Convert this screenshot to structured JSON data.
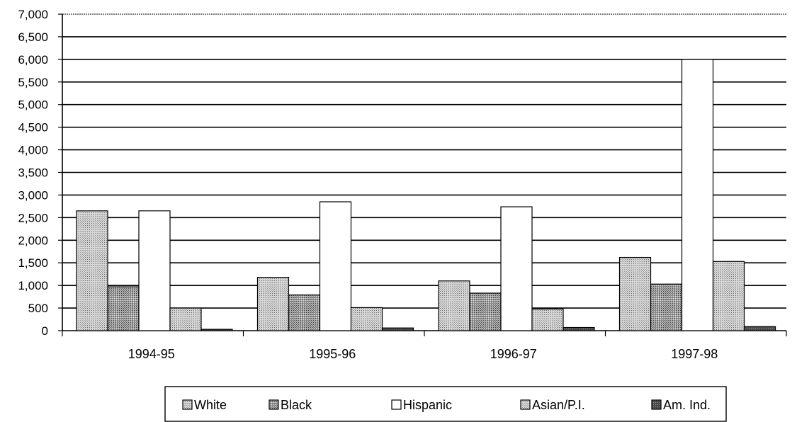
{
  "chart_data": {
    "type": "bar",
    "categories": [
      "1994-95",
      "1995-96",
      "1996-97",
      "1997-98"
    ],
    "series": [
      {
        "name": "White",
        "values": [
          2650,
          1180,
          1100,
          1620
        ],
        "pattern": "dots-light"
      },
      {
        "name": "Black",
        "values": [
          970,
          790,
          830,
          1030
        ],
        "pattern": "dots-medium"
      },
      {
        "name": "Hispanic",
        "values": [
          2650,
          2850,
          2740,
          6000
        ],
        "pattern": "white"
      },
      {
        "name": "Asian/P.I.",
        "values": [
          500,
          510,
          480,
          1530
        ],
        "pattern": "dots-light"
      },
      {
        "name": "Am. Ind.",
        "values": [
          30,
          60,
          70,
          90
        ],
        "pattern": "dark"
      }
    ],
    "yticks": [
      "0",
      "500",
      "1,000",
      "1,500",
      "2,000",
      "2,500",
      "3,000",
      "3,500",
      "4,000",
      "4,500",
      "5,000",
      "5,500",
      "6,000",
      "6,500",
      "7,000"
    ],
    "ylim": [
      0,
      7000
    ],
    "ystep": 500,
    "title": "",
    "xlabel": "",
    "ylabel": "",
    "grid": true,
    "legend_position": "bottom"
  }
}
